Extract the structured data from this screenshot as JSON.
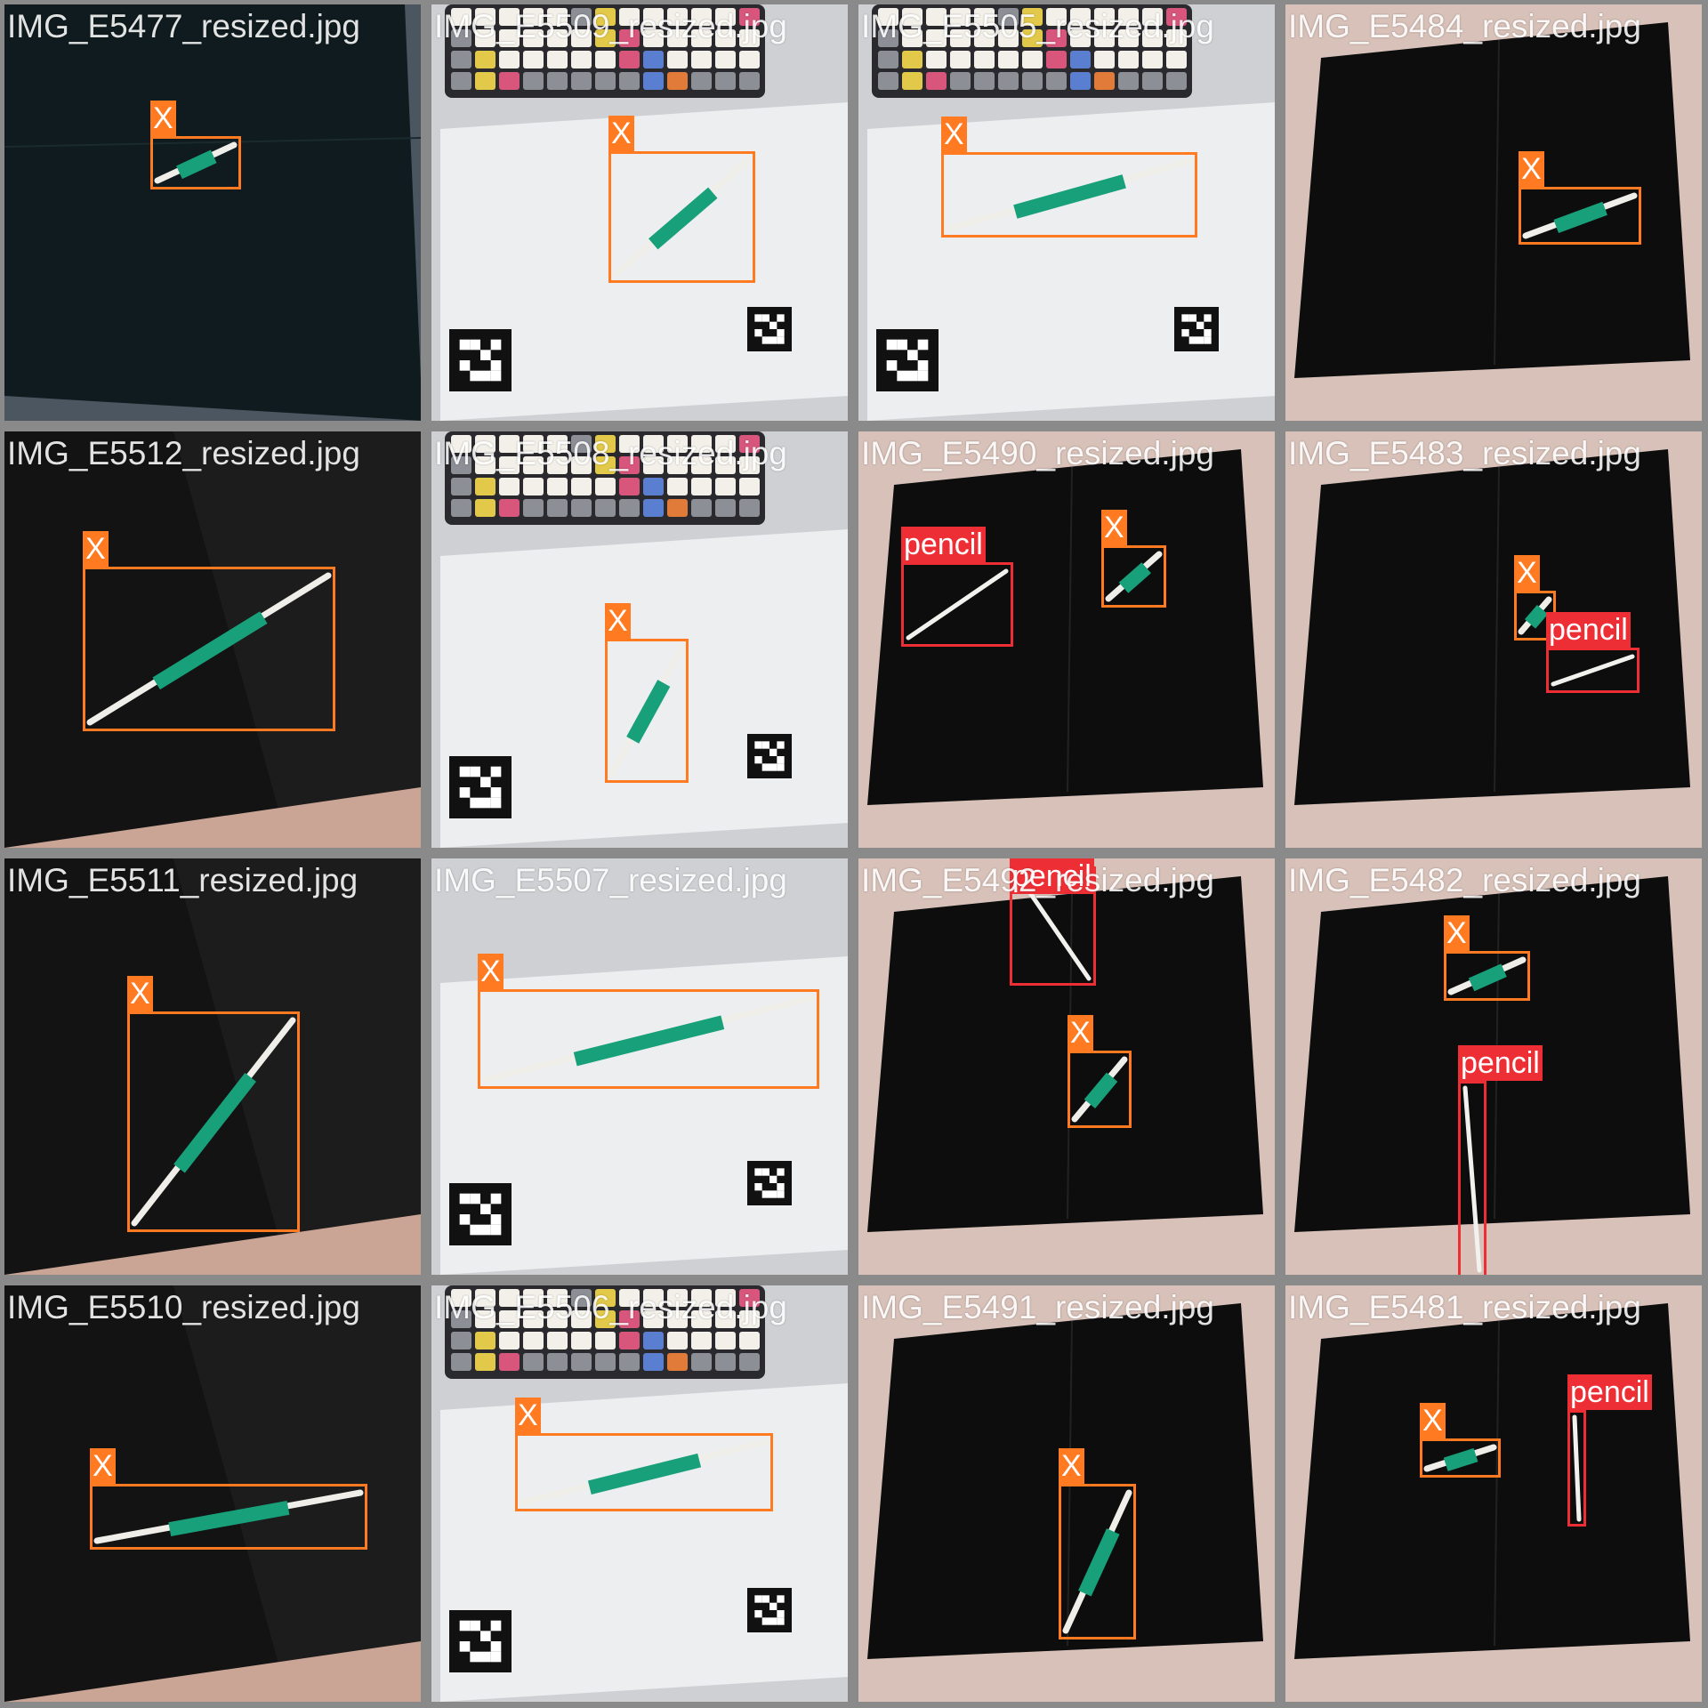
{
  "colors": {
    "x_box": "#ff7a21",
    "pencil_box": "#ed2f35",
    "grid_bg": "#8a8a8a",
    "felt": "#101417",
    "paper": "#eceef0",
    "holder": "#17a07a"
  },
  "tiles": [
    {
      "file": "IMG_E5477_resized.jpg",
      "scene": "felt-green",
      "detections": [
        {
          "label": "X"
        }
      ]
    },
    {
      "file": "IMG_E5509_resized.jpg",
      "scene": "paper-keyboard",
      "detections": [
        {
          "label": "X"
        }
      ]
    },
    {
      "file": "IMG_E5505_resized.jpg",
      "scene": "paper-keyboard",
      "detections": [
        {
          "label": "X"
        }
      ]
    },
    {
      "file": "IMG_E5484_resized.jpg",
      "scene": "felt-bed",
      "detections": [
        {
          "label": "X"
        }
      ]
    },
    {
      "file": "IMG_E5512_resized.jpg",
      "scene": "felt-close",
      "detections": [
        {
          "label": "X"
        }
      ]
    },
    {
      "file": "IMG_E5508_resized.jpg",
      "scene": "paper-keyboard",
      "detections": [
        {
          "label": "X"
        }
      ]
    },
    {
      "file": "IMG_E5490_resized.jpg",
      "scene": "felt-bed",
      "detections": [
        {
          "label": "pencil"
        },
        {
          "label": "X"
        }
      ]
    },
    {
      "file": "IMG_E5483_resized.jpg",
      "scene": "felt-bed",
      "detections": [
        {
          "label": "X"
        },
        {
          "label": "pencil"
        }
      ]
    },
    {
      "file": "IMG_E5511_resized.jpg",
      "scene": "felt-close",
      "detections": [
        {
          "label": "X"
        }
      ]
    },
    {
      "file": "IMG_E5507_resized.jpg",
      "scene": "paper",
      "detections": [
        {
          "label": "X"
        }
      ]
    },
    {
      "file": "IMG_E5492_resized.jpg",
      "scene": "felt-bed",
      "detections": [
        {
          "label": "pencil"
        },
        {
          "label": "X"
        }
      ]
    },
    {
      "file": "IMG_E5482_resized.jpg",
      "scene": "felt-bed",
      "detections": [
        {
          "label": "X"
        },
        {
          "label": "pencil"
        }
      ]
    },
    {
      "file": "IMG_E5510_resized.jpg",
      "scene": "felt-close",
      "detections": [
        {
          "label": "X"
        }
      ]
    },
    {
      "file": "IMG_E5506_resized.jpg",
      "scene": "paper-keyboard",
      "detections": [
        {
          "label": "X"
        }
      ]
    },
    {
      "file": "IMG_E5491_resized.jpg",
      "scene": "felt-bed",
      "detections": [
        {
          "label": "X"
        }
      ]
    },
    {
      "file": "IMG_E5481_resized.jpg",
      "scene": "felt-bed",
      "detections": [
        {
          "label": "X"
        },
        {
          "label": "pencil"
        }
      ]
    }
  ]
}
